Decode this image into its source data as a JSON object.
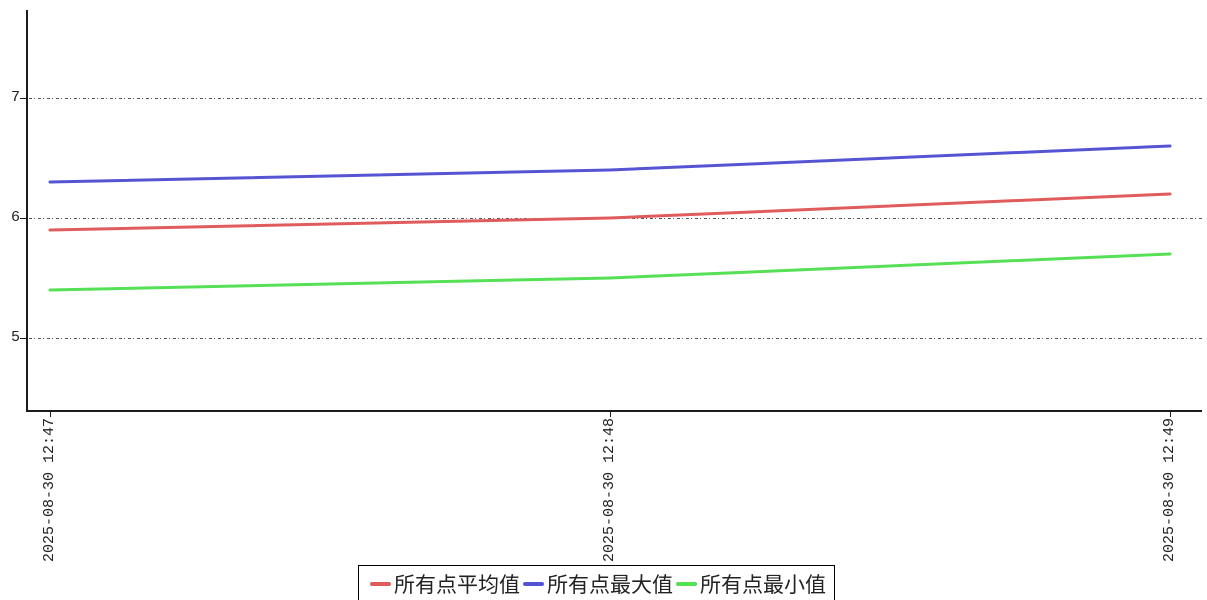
{
  "chart_data": {
    "type": "line",
    "title": "",
    "xlabel": "",
    "ylabel": "",
    "x": [
      "2025-08-30 12:47",
      "2025-08-30 12:48",
      "2025-08-30 12:49"
    ],
    "series": [
      {
        "key": "average",
        "name": "所有点平均值",
        "color": "#e05c5c",
        "values": [
          5.9,
          6.0,
          6.2
        ]
      },
      {
        "key": "max",
        "name": "所有点最大值",
        "color": "#5555d4",
        "values": [
          6.3,
          6.4,
          6.6
        ]
      },
      {
        "key": "min",
        "name": "所有点最小值",
        "color": "#55e055",
        "values": [
          5.4,
          5.5,
          5.7
        ]
      }
    ],
    "yticks": [
      7,
      6,
      5
    ],
    "ylim": [
      4.4,
      7.73
    ],
    "grid": "horizontal dash-dot",
    "legend_position": "bottom-center",
    "axis_color": "#1c1c1c",
    "gridline_color": "#565656",
    "background_color": "#ffffff"
  }
}
